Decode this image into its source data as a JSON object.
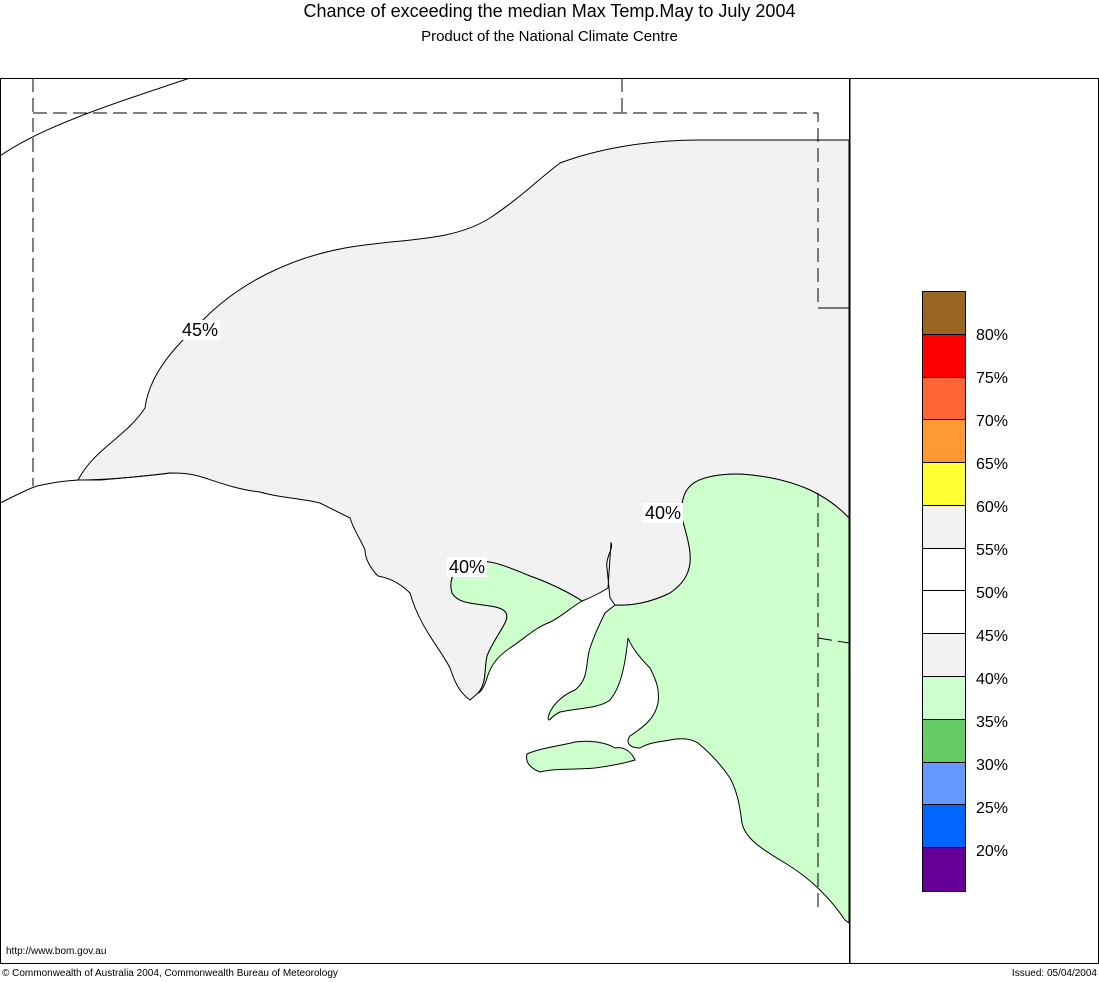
{
  "title": "Chance of exceeding the median Max Temp.May to July 2004",
  "subtitle": "Product of the National Climate Centre",
  "map": {
    "region": "South Australia",
    "contour_labels": {
      "label_45_north": "45%",
      "label_40_east": "40%",
      "label_40_west": "40%"
    },
    "colors": {
      "band_40_45": "#f2f2f2",
      "band_35_40": "#ccffcc",
      "ocean": "#ffffff"
    }
  },
  "legend": {
    "colors": [
      "#996622",
      "#ff0000",
      "#ff6633",
      "#ff9933",
      "#ffff33",
      "#f2f2f2",
      "#ffffff",
      "#ffffff",
      "#f2f2f2",
      "#ccffcc",
      "#66cc66",
      "#6699ff",
      "#0066ff",
      "#660099"
    ],
    "labels": {
      "l80": "80%",
      "l75": "75%",
      "l70": "70%",
      "l65": "65%",
      "l60": "60%",
      "l55": "55%",
      "l50": "50%",
      "l45": "45%",
      "l40": "40%",
      "l35": "35%",
      "l30": "30%",
      "l25": "25%",
      "l20": "20%"
    }
  },
  "footer": {
    "url": "http://www.bom.gov.au",
    "copyright": "© Commonwealth of Australia 2004, Commonwealth Bureau of Meteorology",
    "issued": "Issued: 05/04/2004"
  }
}
